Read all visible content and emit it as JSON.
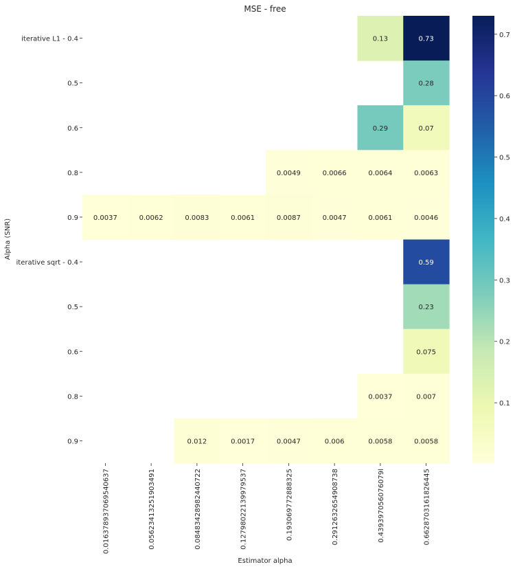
{
  "chart_data": {
    "type": "heatmap",
    "title": "MSE - free",
    "xlabel": "Estimator alpha",
    "ylabel": "Alpha (SNR)",
    "x_categories": [
      "0.016378937069540637",
      "0.05623413251903491",
      "0.08483428982440722",
      "0.12798022139979537",
      "0.1930697728883253",
      "0.29126326549087383",
      "0.4393970560760791",
      "0.6628703161826445"
    ],
    "x_tick_labels": [
      "0.016378937069540637",
      "0.05623413251903491",
      "0.08483428982440722",
      "0.12798022139979537",
      "0.193069772888325",
      "0.2912632654908738",
      "0.439397056076079l",
      "0.6628703161826445"
    ],
    "y_categories": [
      "iterative L1 - 0.4",
      "0.5",
      "0.6",
      "0.8",
      "0.9",
      "iterative sqrt - 0.4",
      "0.5",
      "0.6",
      "0.8",
      "0.9"
    ],
    "values": [
      [
        null,
        null,
        null,
        null,
        null,
        null,
        0.13,
        0.73
      ],
      [
        null,
        null,
        null,
        null,
        null,
        null,
        null,
        0.28
      ],
      [
        null,
        null,
        null,
        null,
        null,
        null,
        0.29,
        0.07
      ],
      [
        null,
        null,
        null,
        null,
        0.0049,
        0.0066,
        0.0064,
        0.0063
      ],
      [
        0.0037,
        0.0062,
        0.0083,
        0.0061,
        0.0087,
        0.0047,
        0.0061,
        0.0046
      ],
      [
        null,
        null,
        null,
        null,
        null,
        null,
        null,
        0.59
      ],
      [
        null,
        null,
        null,
        null,
        null,
        null,
        null,
        0.23
      ],
      [
        null,
        null,
        null,
        null,
        null,
        null,
        null,
        0.075
      ],
      [
        null,
        null,
        null,
        null,
        null,
        null,
        0.0037,
        0.007
      ],
      [
        null,
        null,
        0.012,
        0.0017,
        0.0047,
        0.006,
        0.0058,
        0.0058
      ]
    ],
    "colormap": "YlGnBu",
    "vmin": 0.0017,
    "vmax": 0.73,
    "colorbar_ticks": [
      0.1,
      0.2,
      0.3,
      0.4,
      0.5,
      0.6,
      0.7
    ],
    "colorbar_tick_labels": [
      "0.1",
      "0.2",
      "0.3",
      "0.4",
      "0.5",
      "0.6",
      "0.7"
    ]
  }
}
